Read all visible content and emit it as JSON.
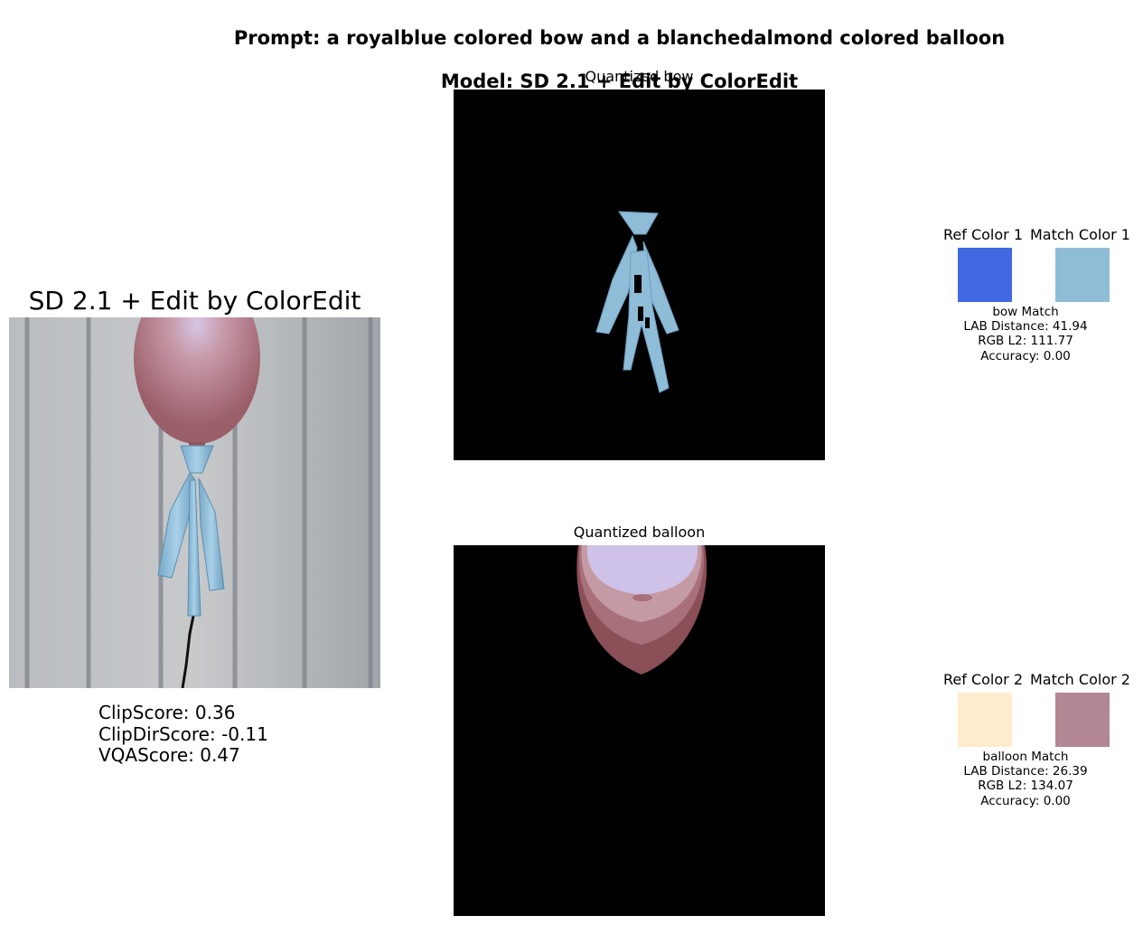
{
  "figure": {
    "title_line1": "Prompt: a royalblue colored bow and a blanchedalmond colored balloon",
    "title_line2": "Model: SD 2.1 + Edit by ColorEdit"
  },
  "generated": {
    "title": "SD 2.1 + Edit by ColorEdit",
    "metrics": {
      "clip": "ClipScore: 0.36",
      "clipdir": "ClipDirScore: -0.11",
      "vqa": "VQAScore: 0.47"
    }
  },
  "objects": [
    {
      "panel_title": "Quantized bow",
      "ref_label": "Ref Color 1",
      "match_label": "Match Color 1",
      "ref_color": "#4169e1",
      "match_color": "#8fbcd6",
      "caption_name": "bow Match",
      "lab": "LAB Distance: 41.94",
      "rgb": "RGB L2: 111.77",
      "acc": "Accuracy: 0.00"
    },
    {
      "panel_title": "Quantized balloon",
      "ref_label": "Ref Color 2",
      "match_label": "Match Color 2",
      "ref_color": "#ffebcd",
      "match_color": "#b38795",
      "caption_name": "balloon Match",
      "lab": "LAB Distance: 26.39",
      "rgb": "RGB L2: 134.07",
      "acc": "Accuracy: 0.00"
    }
  ]
}
